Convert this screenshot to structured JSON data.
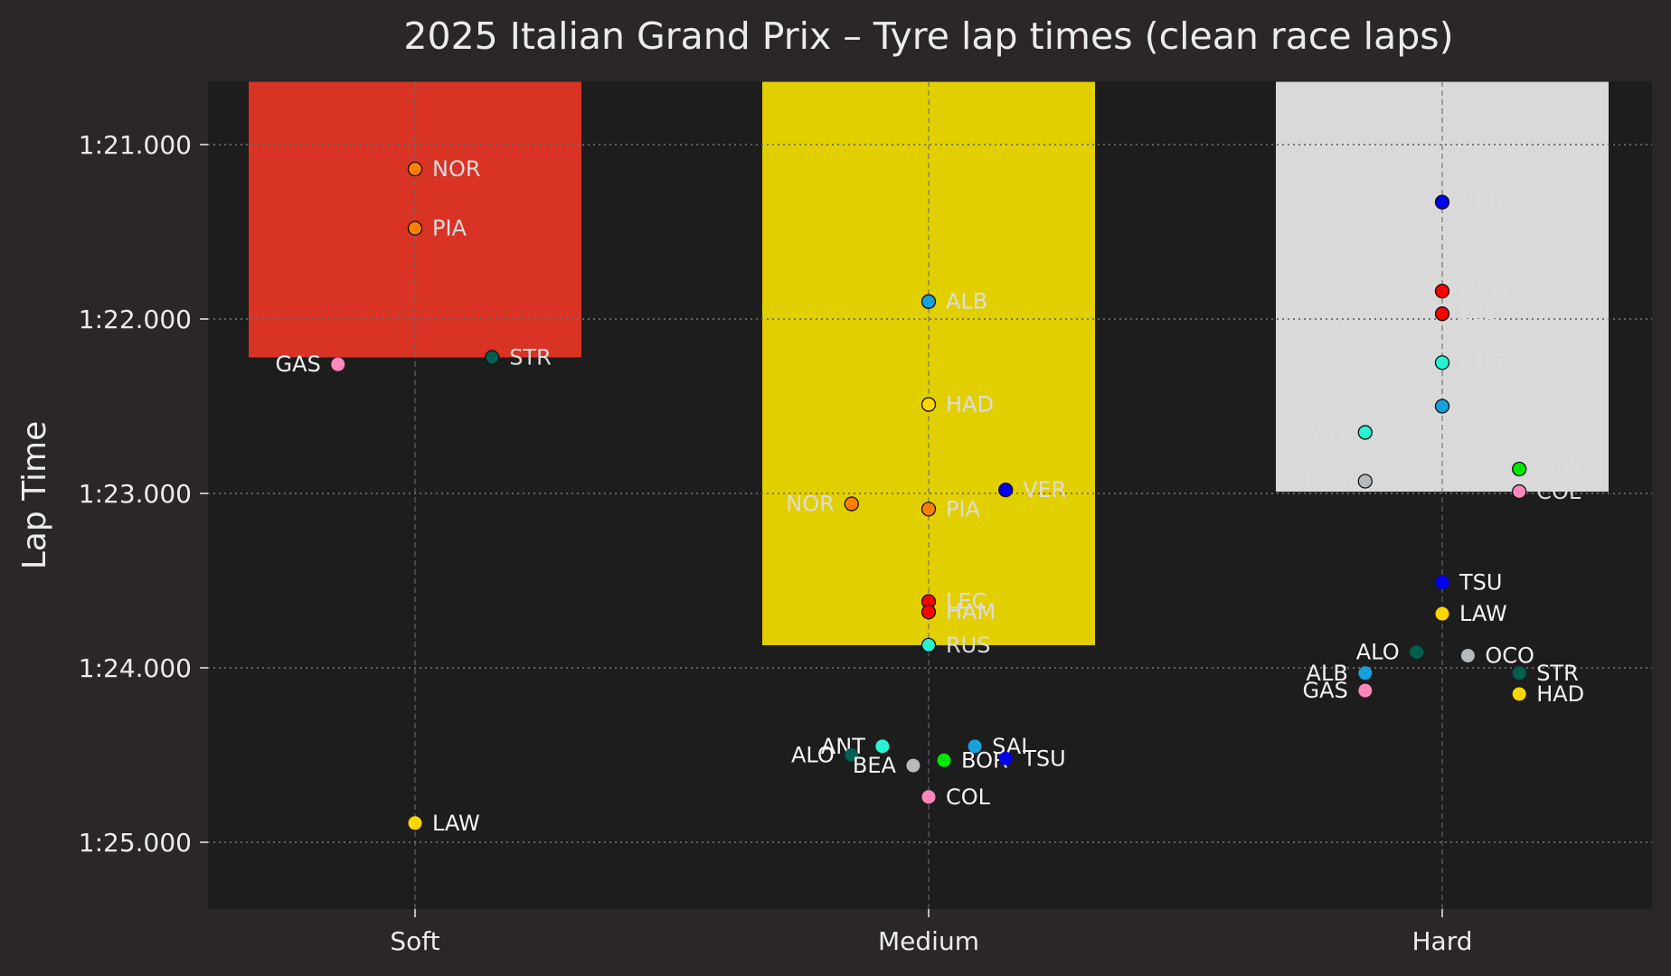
{
  "chart_data": {
    "type": "scatter",
    "title": "2025 Italian Grand Prix – Tyre lap times (clean race laps)",
    "xlabel": "",
    "ylabel": "Lap Time",
    "categories": [
      "Soft",
      "Medium",
      "Hard"
    ],
    "y_ticks": [
      {
        "value": 81.0,
        "label": "1:21.000"
      },
      {
        "value": 82.0,
        "label": "1:22.000"
      },
      {
        "value": 83.0,
        "label": "1:23.000"
      },
      {
        "value": 84.0,
        "label": "1:24.000"
      },
      {
        "value": 85.0,
        "label": "1:25.000"
      }
    ],
    "ylim": [
      80.64,
      85.39
    ],
    "y_inverted": true,
    "grid": true,
    "background_colors": {
      "page": "#2a2726",
      "plot": "#1d1d1d",
      "grid": "#6a6a6a",
      "label": "#ececec"
    },
    "bars": [
      {
        "category": "Soft",
        "top": 80.64,
        "bottom": 82.22,
        "color": "#d93325"
      },
      {
        "category": "Medium",
        "top": 80.64,
        "bottom": 83.87,
        "color": "#e2cf00"
      },
      {
        "category": "Hard",
        "top": 80.64,
        "bottom": 82.99,
        "color": "#d9d9d9"
      }
    ],
    "points": [
      {
        "category": "Soft",
        "offset": 0.0,
        "y": 81.14,
        "driver": "NOR",
        "color": "#ff8000",
        "label_side": "right",
        "outlined": true
      },
      {
        "category": "Soft",
        "offset": 0.0,
        "y": 81.48,
        "driver": "PIA",
        "color": "#ff8000",
        "label_side": "right",
        "outlined": true
      },
      {
        "category": "Soft",
        "offset": -0.15,
        "y": 82.26,
        "driver": "GAS",
        "color": "#ff87bc",
        "label_side": "left",
        "outlined": false
      },
      {
        "category": "Soft",
        "offset": 0.15,
        "y": 82.22,
        "driver": "STR",
        "color": "#005f4f",
        "label_side": "right",
        "outlined": true
      },
      {
        "category": "Soft",
        "offset": 0.0,
        "y": 84.89,
        "driver": "LAW",
        "color": "#ffd500",
        "label_side": "right",
        "outlined": false
      },
      {
        "category": "Medium",
        "offset": 0.0,
        "y": 81.9,
        "driver": "ALB",
        "color": "#16a0dd",
        "label_side": "right",
        "outlined": true
      },
      {
        "category": "Medium",
        "offset": 0.0,
        "y": 82.49,
        "driver": "HAD",
        "color": "#ffd500",
        "label_side": "right",
        "outlined": true
      },
      {
        "category": "Medium",
        "offset": -0.15,
        "y": 83.06,
        "driver": "NOR",
        "color": "#ff8000",
        "label_side": "left",
        "outlined": true
      },
      {
        "category": "Medium",
        "offset": 0.0,
        "y": 83.09,
        "driver": "PIA",
        "color": "#ff8000",
        "label_side": "right",
        "outlined": true
      },
      {
        "category": "Medium",
        "offset": 0.15,
        "y": 82.98,
        "driver": "VER",
        "color": "#0000ee",
        "label_side": "right",
        "outlined": true
      },
      {
        "category": "Medium",
        "offset": 0.0,
        "y": 83.62,
        "driver": "LEC",
        "color": "#ff0000",
        "label_side": "right",
        "outlined": true
      },
      {
        "category": "Medium",
        "offset": 0.0,
        "y": 83.68,
        "driver": "HAM",
        "color": "#ff0000",
        "label_side": "right",
        "outlined": true
      },
      {
        "category": "Medium",
        "offset": 0.0,
        "y": 83.87,
        "driver": "RUS",
        "color": "#27f4d2",
        "label_side": "right",
        "outlined": true
      },
      {
        "category": "Medium",
        "offset": -0.09,
        "y": 84.45,
        "driver": "ANT",
        "color": "#27f4d2",
        "label_side": "left",
        "outlined": false
      },
      {
        "category": "Medium",
        "offset": -0.15,
        "y": 84.5,
        "driver": "ALO",
        "color": "#005f4f",
        "label_side": "left",
        "outlined": false
      },
      {
        "category": "Medium",
        "offset": -0.03,
        "y": 84.56,
        "driver": "BEA",
        "color": "#b6babd",
        "label_side": "left",
        "outlined": false
      },
      {
        "category": "Medium",
        "offset": 0.03,
        "y": 84.53,
        "driver": "BOR",
        "color": "#00e701",
        "label_side": "right",
        "outlined": false
      },
      {
        "category": "Medium",
        "offset": 0.09,
        "y": 84.45,
        "driver": "SAI",
        "color": "#16a0dd",
        "label_side": "right",
        "outlined": false
      },
      {
        "category": "Medium",
        "offset": 0.15,
        "y": 84.52,
        "driver": "TSU",
        "color": "#0000ee",
        "label_side": "right",
        "outlined": false
      },
      {
        "category": "Medium",
        "offset": 0.0,
        "y": 84.74,
        "driver": "COL",
        "color": "#ff87bc",
        "label_side": "right",
        "outlined": false
      },
      {
        "category": "Hard",
        "offset": 0.0,
        "y": 81.33,
        "driver": "VER",
        "color": "#0000ee",
        "label_side": "right",
        "outlined": true
      },
      {
        "category": "Hard",
        "offset": 0.0,
        "y": 81.84,
        "driver": "HAM",
        "color": "#ff0000",
        "label_side": "right",
        "outlined": true
      },
      {
        "category": "Hard",
        "offset": 0.0,
        "y": 81.97,
        "driver": "LEC",
        "color": "#ff0000",
        "label_side": "right",
        "outlined": true
      },
      {
        "category": "Hard",
        "offset": 0.0,
        "y": 82.25,
        "driver": "RUS",
        "color": "#27f4d2",
        "label_side": "right",
        "outlined": true
      },
      {
        "category": "Hard",
        "offset": 0.0,
        "y": 82.5,
        "driver": "SAI",
        "color": "#16a0dd",
        "label_side": "right",
        "outlined": true
      },
      {
        "category": "Hard",
        "offset": -0.15,
        "y": 82.65,
        "driver": "ANT",
        "color": "#27f4d2",
        "label_side": "left",
        "outlined": true
      },
      {
        "category": "Hard",
        "offset": -0.15,
        "y": 82.93,
        "driver": "BEA",
        "color": "#b6babd",
        "label_side": "left",
        "outlined": true
      },
      {
        "category": "Hard",
        "offset": 0.15,
        "y": 82.86,
        "driver": "BOR",
        "color": "#00e701",
        "label_side": "right",
        "outlined": true
      },
      {
        "category": "Hard",
        "offset": 0.15,
        "y": 82.99,
        "driver": "COL",
        "color": "#ff87bc",
        "label_side": "right",
        "outlined": true
      },
      {
        "category": "Hard",
        "offset": 0.0,
        "y": 83.51,
        "driver": "TSU",
        "color": "#0000ee",
        "label_side": "right",
        "outlined": false
      },
      {
        "category": "Hard",
        "offset": 0.0,
        "y": 83.69,
        "driver": "LAW",
        "color": "#ffd500",
        "label_side": "right",
        "outlined": false
      },
      {
        "category": "Hard",
        "offset": -0.05,
        "y": 83.91,
        "driver": "ALO",
        "color": "#005f4f",
        "label_side": "left",
        "outlined": false
      },
      {
        "category": "Hard",
        "offset": 0.05,
        "y": 83.93,
        "driver": "OCO",
        "color": "#b6babd",
        "label_side": "right",
        "outlined": false
      },
      {
        "category": "Hard",
        "offset": -0.15,
        "y": 84.03,
        "driver": "ALB",
        "color": "#16a0dd",
        "label_side": "left",
        "outlined": false
      },
      {
        "category": "Hard",
        "offset": -0.15,
        "y": 84.13,
        "driver": "GAS",
        "color": "#ff87bc",
        "label_side": "left",
        "outlined": false
      },
      {
        "category": "Hard",
        "offset": 0.15,
        "y": 84.03,
        "driver": "STR",
        "color": "#005f4f",
        "label_side": "right",
        "outlined": false
      },
      {
        "category": "Hard",
        "offset": 0.15,
        "y": 84.15,
        "driver": "HAD",
        "color": "#ffd500",
        "label_side": "right",
        "outlined": false
      }
    ]
  }
}
